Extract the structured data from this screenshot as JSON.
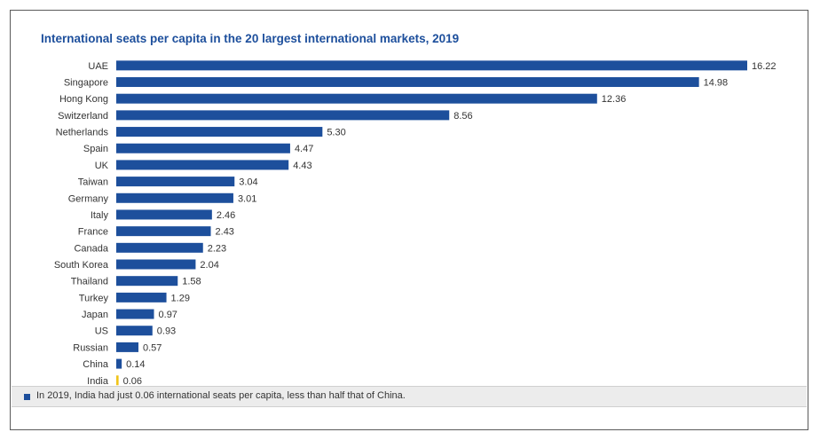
{
  "colors": {
    "bar": "#1d4f9c",
    "highlight": "#f0c419",
    "text": "#333333",
    "title": "#1d4f9c"
  },
  "chart_data": {
    "type": "bar",
    "orientation": "horizontal",
    "title": "International seats per capita in the 20 largest international markets, 2019",
    "categories": [
      "UAE",
      "Singapore",
      "Hong Kong",
      "Switzerland",
      "Netherlands",
      "Spain",
      "UK",
      "Taiwan",
      "Germany",
      "Italy",
      "France",
      "Canada",
      "South Korea",
      "Thailand",
      "Turkey",
      "Japan",
      "US",
      "Russian",
      "China",
      "India"
    ],
    "values": [
      16.22,
      14.98,
      12.36,
      8.56,
      5.3,
      4.47,
      4.43,
      3.04,
      3.01,
      2.46,
      2.43,
      2.23,
      2.04,
      1.58,
      1.29,
      0.97,
      0.93,
      0.57,
      0.14,
      0.06
    ],
    "value_labels": [
      "16.22",
      "14.98",
      "12.36",
      "8.56",
      "5.30",
      "4.47",
      "4.43",
      "3.04",
      "3.01",
      "2.46",
      "2.43",
      "2.23",
      "2.04",
      "1.58",
      "1.29",
      "0.97",
      "0.93",
      "0.57",
      "0.14",
      "0.06"
    ],
    "highlight": "India",
    "xlim": [
      0,
      16.22
    ],
    "grid": false,
    "legend": "none"
  },
  "footer": {
    "note": "In 2019, India had just 0.06 international seats per capita, less than half that of China."
  }
}
